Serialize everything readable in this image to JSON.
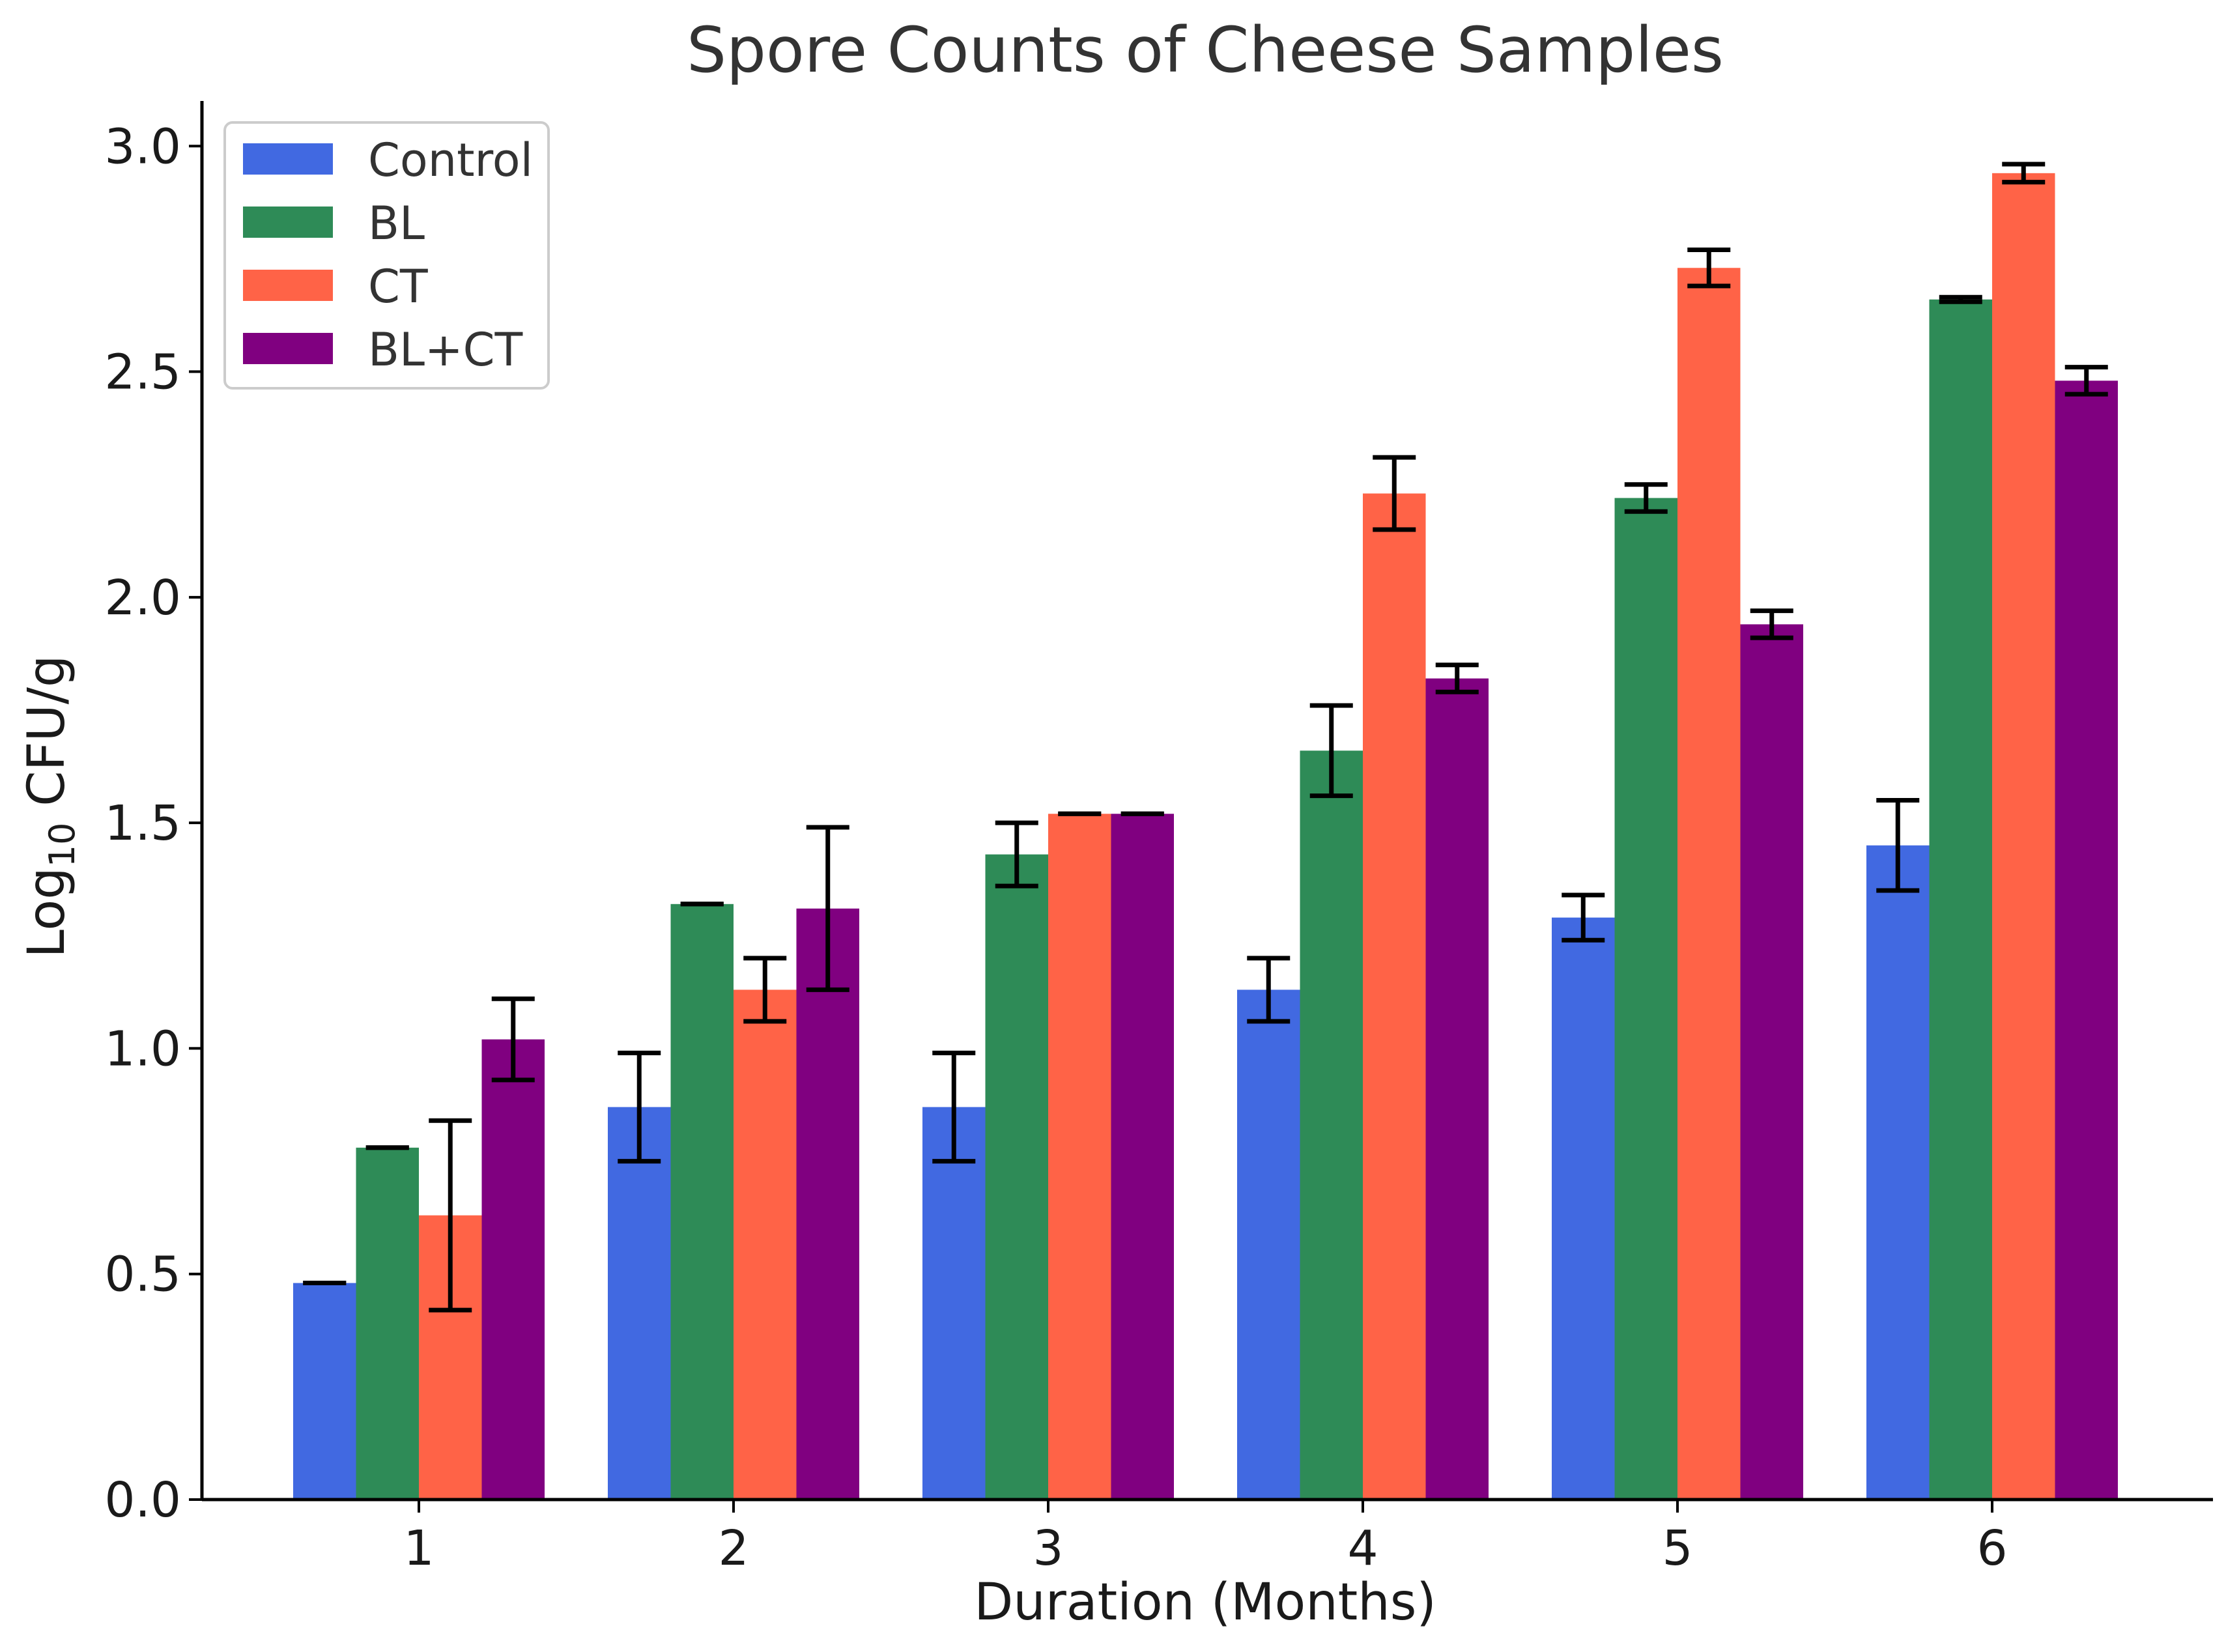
{
  "chart_data": {
    "type": "bar",
    "title": "Spore Counts of Cheese Samples",
    "xlabel": "Duration (Months)",
    "ylabel_main": "Log",
    "ylabel_sub": "10",
    "ylabel_rest": " CFU/g",
    "categories": [
      "1",
      "2",
      "3",
      "4",
      "5",
      "6"
    ],
    "ylim": [
      0,
      3.1
    ],
    "yticks": [
      "0.0",
      "0.5",
      "1.0",
      "1.5",
      "2.0",
      "2.5",
      "3.0"
    ],
    "grid": false,
    "legend_position": "top-left",
    "series": [
      {
        "name": "Control",
        "color": "#4169E1",
        "values": [
          0.48,
          0.87,
          0.87,
          1.13,
          1.29,
          1.45
        ],
        "errors": [
          0.0,
          0.12,
          0.12,
          0.07,
          0.05,
          0.1
        ]
      },
      {
        "name": "BL",
        "color": "#2E8B57",
        "values": [
          0.78,
          1.32,
          1.43,
          1.66,
          2.22,
          2.66
        ],
        "errors": [
          0.0,
          0.0,
          0.07,
          0.1,
          0.03,
          0.005
        ]
      },
      {
        "name": "CT",
        "color": "#FF6347",
        "values": [
          0.63,
          1.13,
          1.52,
          2.23,
          2.73,
          2.94
        ],
        "errors": [
          0.21,
          0.07,
          0.0,
          0.08,
          0.04,
          0.02
        ]
      },
      {
        "name": "BL+CT",
        "color": "#800080",
        "values": [
          1.02,
          1.31,
          1.52,
          1.82,
          1.94,
          2.48
        ],
        "errors": [
          0.09,
          0.18,
          0.0,
          0.03,
          0.03,
          0.03
        ]
      }
    ]
  }
}
